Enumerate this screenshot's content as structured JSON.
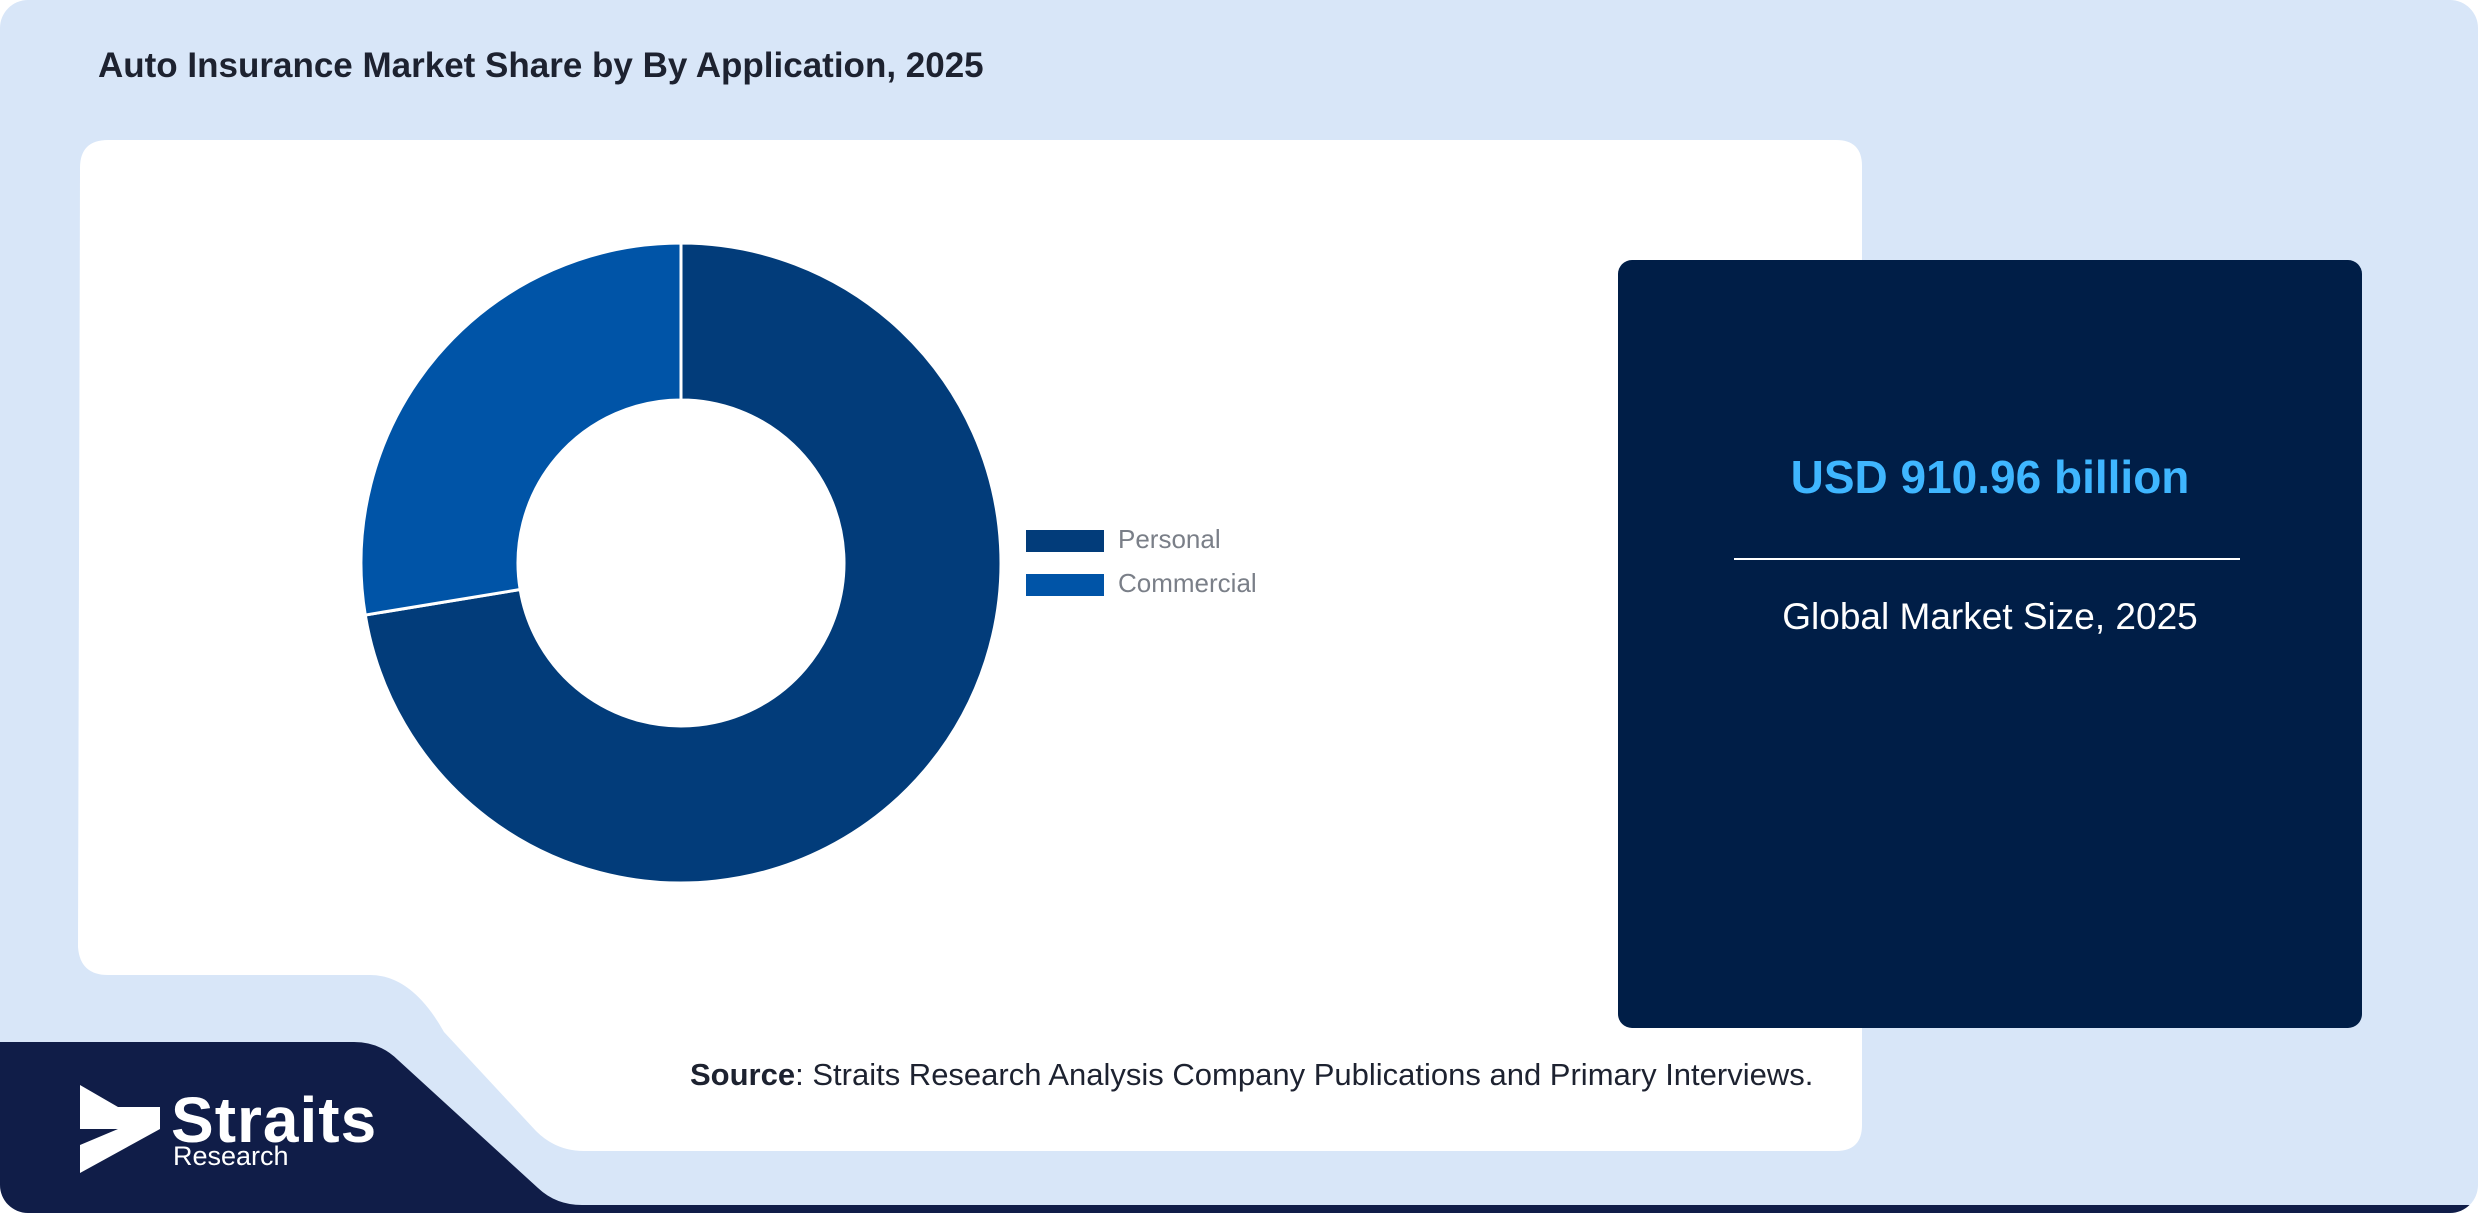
{
  "page": {
    "title": "Auto Insurance Market Share by By Application, 2025",
    "source_label": "Source",
    "source_text": ": Straits Research Analysis Company Publications and Primary Interviews."
  },
  "stat": {
    "value": "USD 910.96 billion",
    "caption": "Global Market Size, 2025"
  },
  "brand": {
    "name": "Straits",
    "subtitle": "Research"
  },
  "colors": {
    "background": "#d8e6f8",
    "panel": "#ffffff",
    "card": "#001e47",
    "accent_value": "#3fb6ff",
    "footer": "#101d48"
  },
  "chart_data": {
    "type": "pie",
    "style": "donut",
    "categories": [
      "Personal",
      "Commercial"
    ],
    "values": [
      72.4,
      27.6
    ],
    "colors": [
      "#023c7a",
      "#0054a7"
    ],
    "legend_position": "right"
  }
}
